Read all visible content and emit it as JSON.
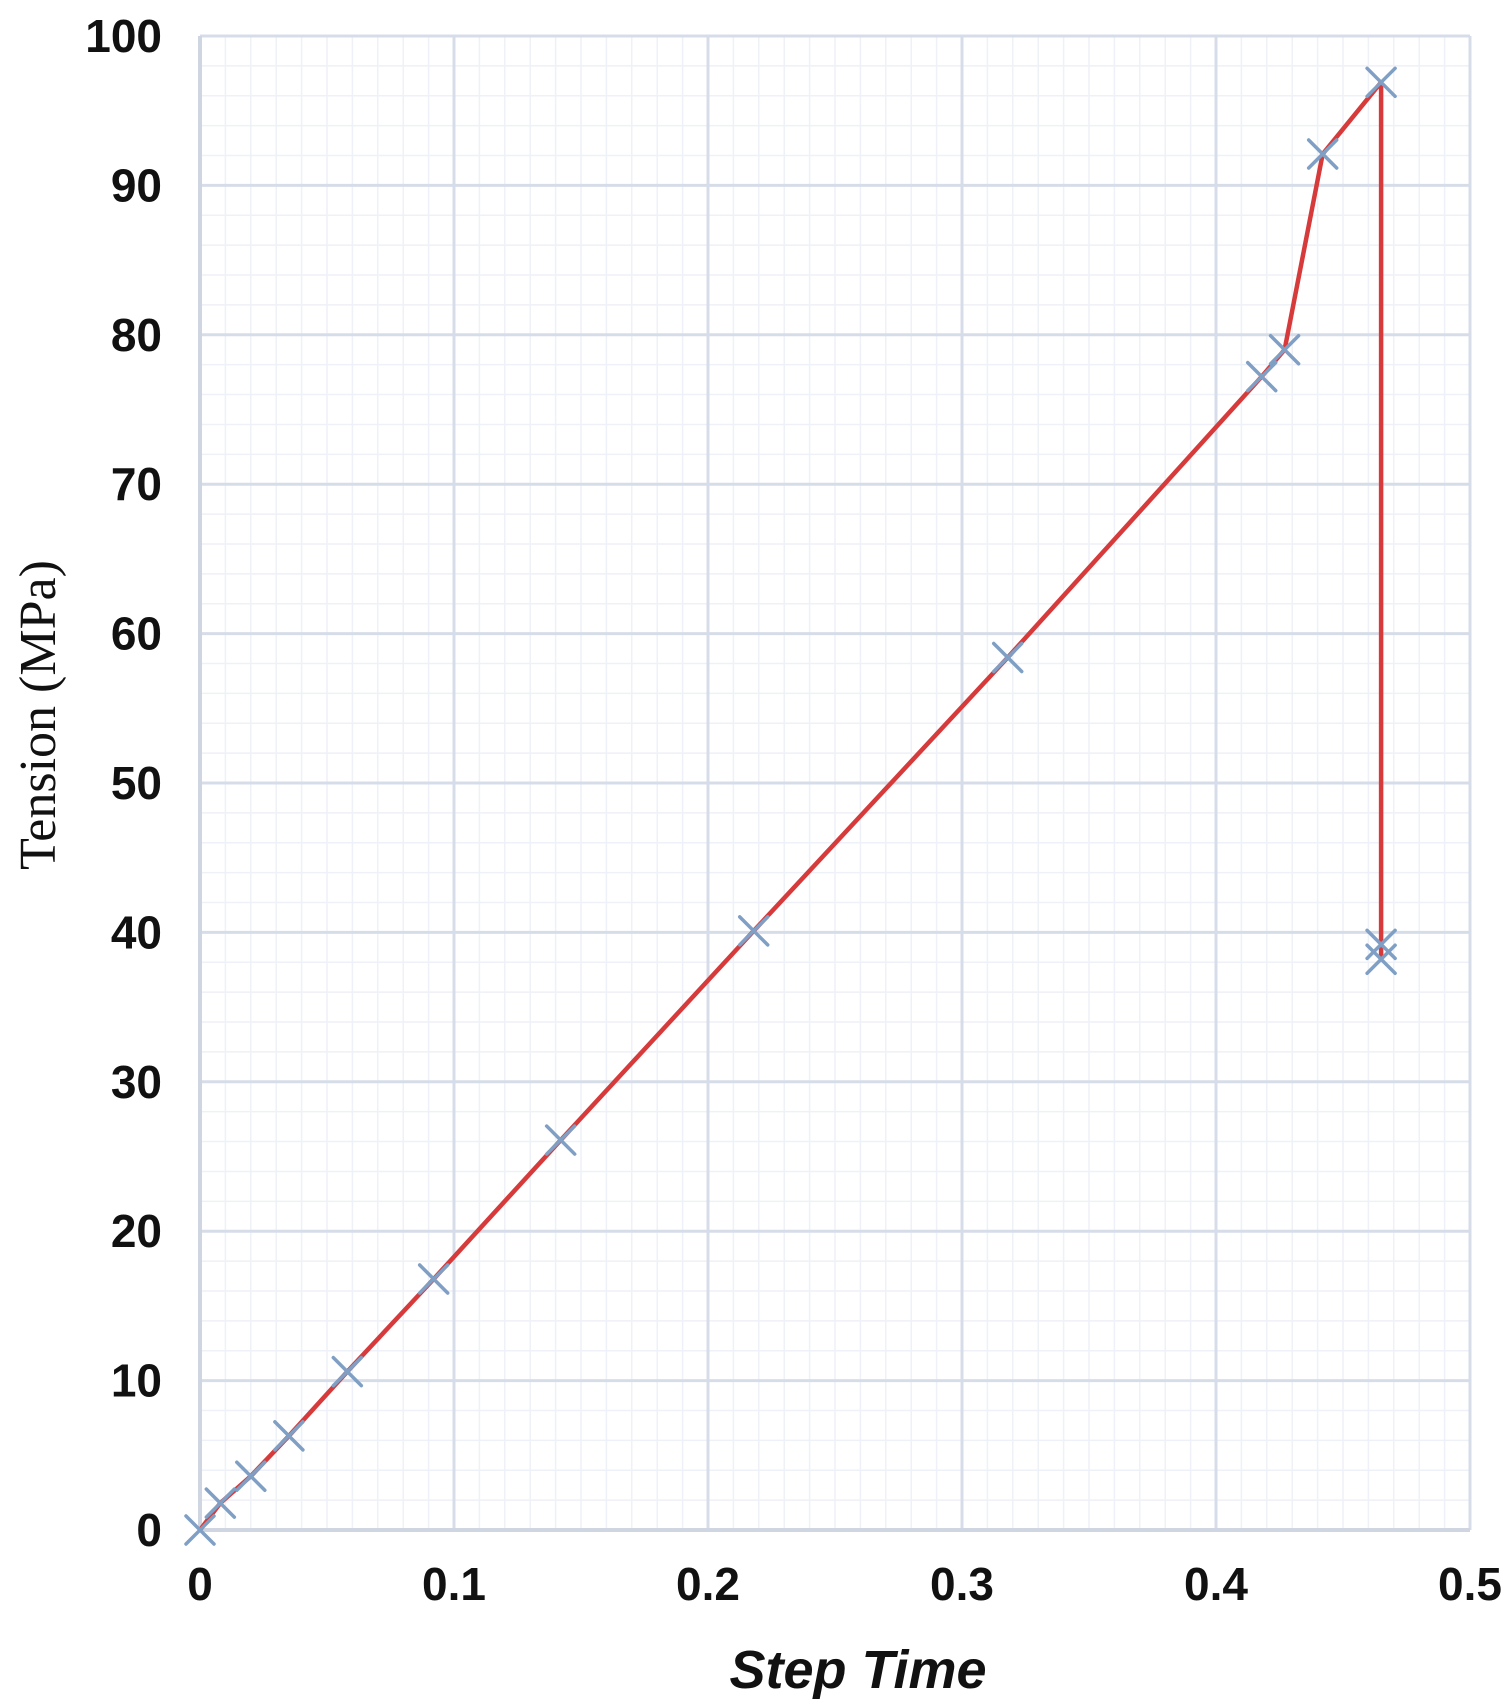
{
  "chart_data": {
    "type": "line",
    "title": "",
    "xlabel": "Step Time",
    "ylabel": "Tension (MPa)",
    "xlim": [
      0,
      0.5
    ],
    "ylim": [
      0,
      100
    ],
    "x_ticks": [
      "0",
      "0.1",
      "0.2",
      "0.3",
      "0.4",
      "0.5"
    ],
    "y_ticks": [
      "0",
      "10",
      "20",
      "30",
      "40",
      "50",
      "60",
      "70",
      "80",
      "90",
      "100"
    ],
    "grid": true,
    "minor_grid": true,
    "legend": "none",
    "series": [
      {
        "name": "",
        "color": "#d63a3a",
        "marker": "x",
        "marker_color": "#7f9fc4",
        "points": [
          {
            "x": 0.0,
            "y": 0.0
          },
          {
            "x": 0.008,
            "y": 1.8
          },
          {
            "x": 0.02,
            "y": 3.6
          },
          {
            "x": 0.035,
            "y": 6.3
          },
          {
            "x": 0.058,
            "y": 10.6
          },
          {
            "x": 0.092,
            "y": 16.8
          },
          {
            "x": 0.142,
            "y": 26.1
          },
          {
            "x": 0.218,
            "y": 40.1
          },
          {
            "x": 0.318,
            "y": 58.4
          },
          {
            "x": 0.418,
            "y": 77.2
          },
          {
            "x": 0.427,
            "y": 79.0
          },
          {
            "x": 0.442,
            "y": 92.1
          },
          {
            "x": 0.465,
            "y": 96.9
          },
          {
            "x": 0.465,
            "y": 39.2
          },
          {
            "x": 0.465,
            "y": 38.2
          }
        ]
      }
    ]
  }
}
